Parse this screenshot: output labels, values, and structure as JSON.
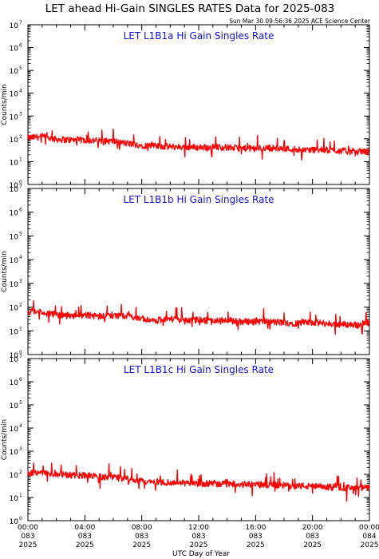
{
  "figure": {
    "title": "LET ahead Hi-Gain SINGLES RATES Data for 2025-083",
    "timestamp": "Sun Mar 30 09:56:36 2025 ACE Science Center",
    "xlabel": "UTC Day of Year"
  },
  "colors": {
    "series": "#ff0000",
    "panel_label": "#1010e0",
    "axes": "#000000"
  },
  "chart_data": [
    {
      "type": "line",
      "title": "LET L1B1a Hi Gain Singles Rate",
      "ylabel": "Counts/min",
      "yscale": "log",
      "ylim": [
        1,
        10000000
      ],
      "xlim": [
        0,
        24
      ],
      "y_ticks": [
        {
          "base": "10",
          "exp": "0"
        },
        {
          "base": "10",
          "exp": "1"
        },
        {
          "base": "10",
          "exp": "2"
        },
        {
          "base": "10",
          "exp": "3"
        },
        {
          "base": "10",
          "exp": "4"
        },
        {
          "base": "10",
          "exp": "5"
        },
        {
          "base": "10",
          "exp": "6"
        },
        {
          "base": "10",
          "exp": "7"
        }
      ],
      "series": [
        {
          "x": [
            0,
            1,
            2,
            3,
            4,
            5,
            6,
            7,
            8,
            9,
            10,
            11,
            12,
            13,
            14,
            15,
            16,
            17,
            18,
            19,
            20,
            21,
            22,
            23,
            24
          ],
          "values": [
            110,
            125,
            95,
            90,
            88,
            82,
            78,
            62,
            52,
            48,
            45,
            44,
            42,
            44,
            42,
            38,
            38,
            40,
            37,
            35,
            33,
            32,
            30,
            27,
            28
          ]
        }
      ]
    },
    {
      "type": "line",
      "title": "LET L1B1b Hi Gain Singles Rate",
      "ylabel": "Counts/min",
      "yscale": "log",
      "ylim": [
        1,
        10000000
      ],
      "xlim": [
        0,
        24
      ],
      "y_ticks": [
        {
          "base": "10",
          "exp": "0"
        },
        {
          "base": "10",
          "exp": "1"
        },
        {
          "base": "10",
          "exp": "2"
        },
        {
          "base": "10",
          "exp": "3"
        },
        {
          "base": "10",
          "exp": "4"
        },
        {
          "base": "10",
          "exp": "5"
        },
        {
          "base": "10",
          "exp": "6"
        },
        {
          "base": "10",
          "exp": "7"
        }
      ],
      "series": [
        {
          "x": [
            0,
            1,
            2,
            3,
            4,
            5,
            6,
            7,
            8,
            9,
            10,
            11,
            12,
            13,
            14,
            15,
            16,
            17,
            18,
            19,
            20,
            21,
            22,
            23,
            24
          ],
          "values": [
            65,
            60,
            48,
            42,
            45,
            40,
            44,
            38,
            34,
            28,
            32,
            26,
            30,
            25,
            28,
            24,
            26,
            24,
            22,
            21,
            23,
            20,
            19,
            18,
            22
          ]
        }
      ]
    },
    {
      "type": "line",
      "title": "LET L1B1c Hi Gain Singles Rate",
      "ylabel": "Counts/min",
      "yscale": "log",
      "ylim": [
        1,
        10000000
      ],
      "xlim": [
        0,
        24
      ],
      "y_ticks": [
        {
          "base": "10",
          "exp": "0"
        },
        {
          "base": "10",
          "exp": "1"
        },
        {
          "base": "10",
          "exp": "2"
        },
        {
          "base": "10",
          "exp": "3"
        },
        {
          "base": "10",
          "exp": "4"
        },
        {
          "base": "10",
          "exp": "5"
        },
        {
          "base": "10",
          "exp": "6"
        },
        {
          "base": "10",
          "exp": "7"
        }
      ],
      "series": [
        {
          "x": [
            0,
            1,
            2,
            3,
            4,
            5,
            6,
            7,
            8,
            9,
            10,
            11,
            12,
            13,
            14,
            15,
            16,
            17,
            18,
            19,
            20,
            21,
            22,
            23,
            24
          ],
          "values": [
            110,
            120,
            100,
            92,
            88,
            80,
            75,
            62,
            50,
            48,
            44,
            42,
            40,
            40,
            38,
            37,
            36,
            35,
            33,
            32,
            30,
            28,
            27,
            25,
            27
          ]
        }
      ]
    }
  ],
  "x_axis": {
    "ticks": [
      {
        "x": 0,
        "time": "00:00",
        "doy": "083",
        "year": "2025"
      },
      {
        "x": 4,
        "time": "04:00",
        "doy": "083",
        "year": "2025"
      },
      {
        "x": 8,
        "time": "08:00",
        "doy": "083",
        "year": "2025"
      },
      {
        "x": 12,
        "time": "12:00",
        "doy": "083",
        "year": "2025"
      },
      {
        "x": 16,
        "time": "16:00",
        "doy": "083",
        "year": "2025"
      },
      {
        "x": 20,
        "time": "20:00",
        "doy": "083",
        "year": "2025"
      },
      {
        "x": 24,
        "time": "00:00",
        "doy": "084",
        "year": "2025"
      }
    ]
  }
}
